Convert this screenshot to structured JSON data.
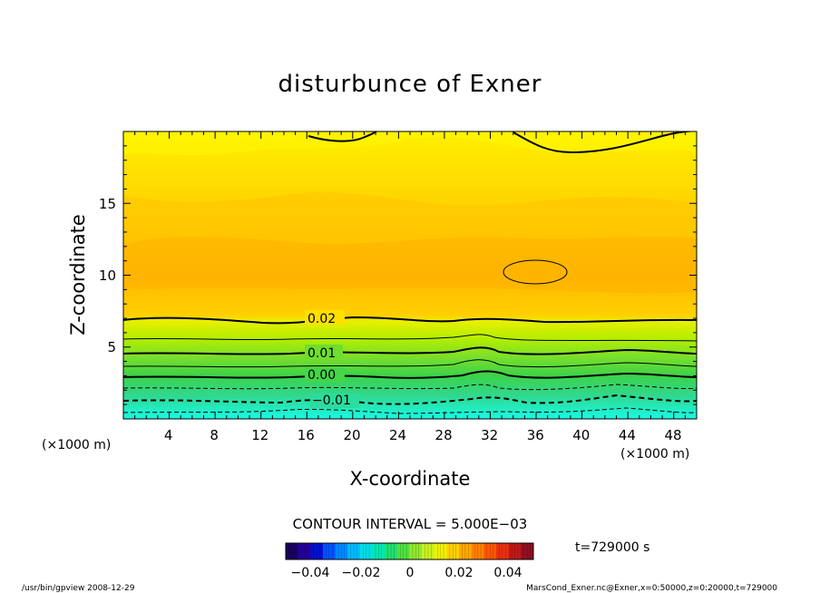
{
  "chart_data": {
    "type": "contour",
    "title": "disturbunce of Exner",
    "xlabel": "X-coordinate",
    "ylabel": "Z-coordinate",
    "x_unit": "(×1000 m)",
    "y_unit": "(×1000 m)",
    "xlim": [
      0,
      50
    ],
    "ylim": [
      0,
      20
    ],
    "x_ticks": [
      4,
      8,
      12,
      16,
      20,
      24,
      28,
      32,
      36,
      40,
      44,
      48
    ],
    "y_ticks": [
      5,
      10,
      15
    ],
    "contour_labels": [
      "0.02",
      "0.01",
      "0.00",
      "−0.01"
    ],
    "contour_interval_text": "CONTOUR INTERVAL = 5.000E−03",
    "colorbar": {
      "tick_labels": [
        "−0.04",
        "−0.02",
        "0",
        "0.02",
        "0.04"
      ],
      "range": [
        -0.05,
        0.05
      ]
    },
    "time_label": "t=729000 s",
    "footer_left": "/usr/bin/gpview   2008-12-29",
    "footer_right": "MarsCond_Exner.nc@Exner,x=0:50000,z=0:20000,t=729000",
    "colors": {
      "fill_top": "#ffe800",
      "fill_mid": "#ffb400",
      "fill_green": "#3cd24a",
      "fill_cyan": "#18fae6"
    }
  }
}
